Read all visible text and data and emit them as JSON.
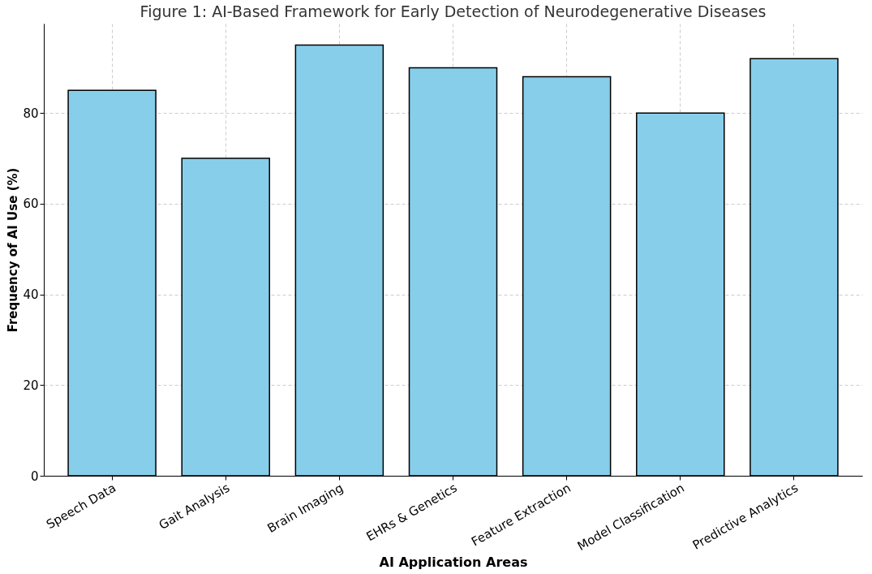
{
  "chart_data": {
    "type": "bar",
    "title": "Figure 1: AI-Based Framework for Early Detection of Neurodegenerative Diseases",
    "xlabel": "AI Application Areas",
    "ylabel": "Frequency of AI Use (%)",
    "categories": [
      "Speech Data",
      "Gait Analysis",
      "Brain Imaging",
      "EHRs & Genetics",
      "Feature Extraction",
      "Model Classification",
      "Predictive Analytics"
    ],
    "values": [
      85,
      70,
      95,
      90,
      88,
      80,
      92
    ],
    "color": "#87ceeb",
    "ylim": [
      0,
      99.75
    ],
    "yticks": [
      0,
      20,
      40,
      60,
      80
    ],
    "grid": true
  }
}
